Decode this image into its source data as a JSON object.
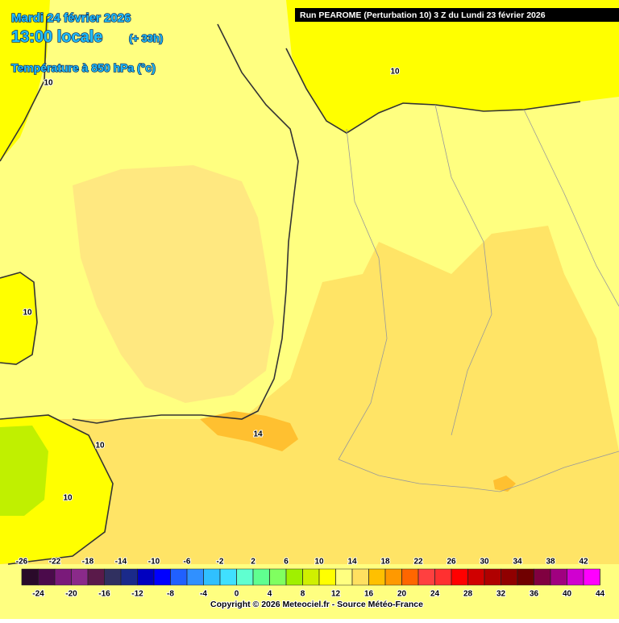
{
  "header": {
    "date": "Mardi 24 février 2026",
    "time": "13:00 locale",
    "lead": "(+ 33h)",
    "field": "Température à 850 hPa (°c)",
    "run": "Run PEAROME (Perturbation 10) 3 Z du Lundi 23 février 2026"
  },
  "contour_labels": [
    10,
    10,
    10,
    10,
    10,
    14
  ],
  "colorbar": {
    "ticks": [
      -26,
      -24,
      -22,
      -20,
      -18,
      -16,
      -14,
      -12,
      -10,
      -8,
      -6,
      -4,
      -2,
      0,
      2,
      4,
      6,
      8,
      10,
      12,
      14,
      16,
      18,
      20,
      22,
      24,
      26,
      28,
      30,
      32,
      34,
      36,
      38,
      40,
      42,
      44
    ],
    "colors": [
      "#2a0a2a",
      "#4b0a4b",
      "#7a1a7a",
      "#8a2a8a",
      "#5a1a4a",
      "#303060",
      "#1a2a8a",
      "#0000c0",
      "#0000ff",
      "#2060ff",
      "#3090ff",
      "#30c0ff",
      "#40e0ff",
      "#60ffd0",
      "#60ff90",
      "#80ff60",
      "#a0f000",
      "#d0f000",
      "#ffff00",
      "#ffff80",
      "#ffe060",
      "#ffc000",
      "#ff9900",
      "#ff6600",
      "#ff4040",
      "#ff3030",
      "#ff0000",
      "#d00000",
      "#b00000",
      "#900000",
      "#700000",
      "#800040",
      "#a00080",
      "#d000d0",
      "#ff00ff"
    ]
  },
  "footer": {
    "copyright": "Copyright © 2026 Meteociel.fr - Source Météo-France"
  }
}
